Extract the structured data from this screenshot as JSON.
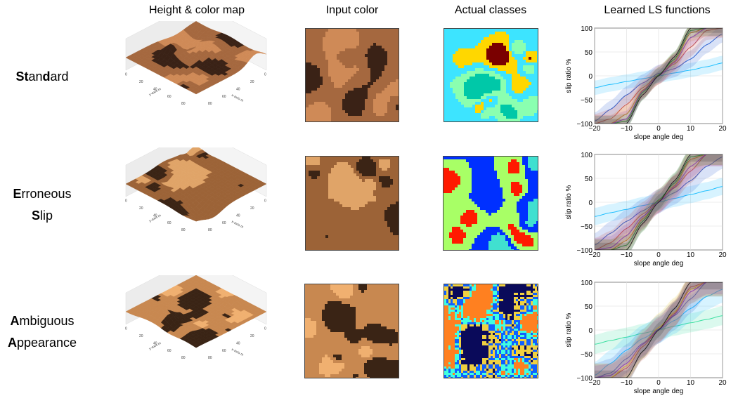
{
  "columns": {
    "height_map": "Height & color map",
    "input_color": "Input color",
    "actual_classes": "Actual classes",
    "ls_functions": "Learned LS functions"
  },
  "rows": [
    {
      "label_lines": [
        [
          {
            "t": "St",
            "b": true
          },
          {
            "t": "an",
            "b": false
          },
          {
            "t": "d",
            "b": true
          },
          {
            "t": "ard",
            "b": false
          }
        ]
      ]
    },
    {
      "label_lines": [
        [
          {
            "t": "E",
            "b": true
          },
          {
            "t": "rroneous",
            "b": false
          }
        ],
        [
          {
            "t": "S",
            "b": true
          },
          {
            "t": "lip",
            "b": false
          }
        ]
      ]
    },
    {
      "label_lines": [
        [
          {
            "t": "A",
            "b": true
          },
          {
            "t": "mbiguous",
            "b": false
          }
        ],
        [
          {
            "t": "A",
            "b": true
          },
          {
            "t": "ppearance",
            "b": false
          }
        ]
      ]
    }
  ],
  "surface_axes": {
    "x_label": "x-axis m",
    "y_label": "y-axis m",
    "x_ticks": [
      "0",
      "20",
      "40",
      "60",
      "80"
    ],
    "y_ticks": [
      "0",
      "20",
      "40",
      "60",
      "80"
    ]
  },
  "palettes": {
    "terrain_row1": [
      "#3a2216",
      "#a5683f",
      "#cf8a57"
    ],
    "terrain_row2": [
      "#3b2415",
      "#9c6337",
      "#e0a468"
    ],
    "terrain_row3": [
      "#3a2415",
      "#c88850",
      "#f0b070"
    ],
    "classes_row1": [
      "#7a0000",
      "#ffd700",
      "#3de4ff",
      "#8affb0",
      "#00c8a8"
    ],
    "classes_row2": [
      "#ff1a00",
      "#a8ff66",
      "#0030ff",
      "#40e0d0"
    ],
    "classes_row3": [
      "#0a0a5a",
      "#f0d040",
      "#1060ff",
      "#40ffe0",
      "#ff8020"
    ]
  },
  "chart_data": [
    {
      "type": "line",
      "title": "",
      "xlabel": "slope angle deg",
      "ylabel": "slip ratio %",
      "xlim": [
        -20,
        20
      ],
      "ylim": [
        -100,
        100
      ],
      "xticks": [
        -20,
        -10,
        0,
        10,
        20
      ],
      "yticks": [
        -100,
        -50,
        0,
        50,
        100
      ],
      "grid": true,
      "x": [
        -20,
        -15,
        -10,
        -5,
        0,
        5,
        10,
        15,
        20
      ],
      "series": [
        {
          "color": "#1fbfff",
          "values": [
            -25,
            -18,
            -12,
            -6,
            0,
            6,
            12,
            19,
            27
          ],
          "band": 15
        },
        {
          "color": "#2a5fd0",
          "values": [
            -95,
            -70,
            -40,
            -15,
            5,
            15,
            35,
            65,
            88
          ],
          "band": 18
        },
        {
          "color": "#c0504d",
          "values": [
            -100,
            -90,
            -60,
            -25,
            2,
            25,
            60,
            95,
            100
          ],
          "band": 20
        },
        {
          "color": "#e08020",
          "values": [
            -100,
            -100,
            -80,
            -30,
            0,
            30,
            90,
            100,
            100
          ],
          "band": 18
        },
        {
          "color": "#2ca02c",
          "values": [
            -100,
            -100,
            -95,
            -35,
            2,
            35,
            95,
            100,
            100
          ],
          "band": 16
        },
        {
          "color": "#8e44ad",
          "values": [
            -100,
            -100,
            -90,
            -32,
            0,
            28,
            80,
            100,
            100
          ],
          "band": 17
        },
        {
          "color": "#222222",
          "values": [
            -100,
            -100,
            -100,
            -40,
            0,
            40,
            100,
            100,
            100
          ],
          "band": 10
        }
      ]
    },
    {
      "type": "line",
      "title": "",
      "xlabel": "slope angle deg",
      "ylabel": "slip ratio %",
      "xlim": [
        -20,
        20
      ],
      "ylim": [
        -100,
        100
      ],
      "xticks": [
        -20,
        -10,
        0,
        10,
        20
      ],
      "yticks": [
        -100,
        -50,
        0,
        50,
        100
      ],
      "grid": true,
      "x": [
        -20,
        -15,
        -10,
        -5,
        0,
        5,
        10,
        15,
        20
      ],
      "series": [
        {
          "color": "#1fbfff",
          "values": [
            -30,
            -22,
            -15,
            -7,
            0,
            8,
            16,
            24,
            33
          ],
          "band": 18
        },
        {
          "color": "#2a5fd0",
          "values": [
            -90,
            -65,
            -40,
            -18,
            2,
            20,
            45,
            75,
            95
          ],
          "band": 25
        },
        {
          "color": "#c0504d",
          "values": [
            -100,
            -85,
            -55,
            -25,
            3,
            30,
            65,
            100,
            100
          ],
          "band": 25
        },
        {
          "color": "#e08020",
          "values": [
            -100,
            -100,
            -80,
            -35,
            0,
            35,
            90,
            100,
            100
          ],
          "band": 22
        },
        {
          "color": "#2ca02c",
          "values": [
            -100,
            -100,
            -90,
            -40,
            5,
            40,
            95,
            100,
            100
          ],
          "band": 22
        },
        {
          "color": "#8e44ad",
          "values": [
            -100,
            -95,
            -70,
            -30,
            0,
            32,
            75,
            100,
            100
          ],
          "band": 24
        },
        {
          "color": "#222222",
          "values": [
            -100,
            -100,
            -100,
            -45,
            0,
            45,
            100,
            100,
            100
          ],
          "band": 15
        }
      ]
    },
    {
      "type": "line",
      "title": "",
      "xlabel": "slope angle deg",
      "ylabel": "slip ratio %",
      "xlim": [
        -20,
        20
      ],
      "ylim": [
        -100,
        100
      ],
      "xticks": [
        -20,
        -10,
        0,
        10,
        20
      ],
      "yticks": [
        -100,
        -50,
        0,
        50,
        100
      ],
      "grid": true,
      "x": [
        -20,
        -15,
        -10,
        -5,
        0,
        5,
        10,
        15,
        20
      ],
      "series": [
        {
          "color": "#3adfa0",
          "values": [
            -30,
            -22,
            -15,
            -7,
            0,
            8,
            15,
            22,
            30
          ],
          "band": 20
        },
        {
          "color": "#1fbfff",
          "values": [
            -95,
            -70,
            -42,
            -18,
            0,
            20,
            45,
            70,
            85
          ],
          "band": 28
        },
        {
          "color": "#2a5fd0",
          "values": [
            -100,
            -90,
            -60,
            -28,
            2,
            30,
            65,
            100,
            100
          ],
          "band": 30
        },
        {
          "color": "#c0504d",
          "values": [
            -100,
            -100,
            -80,
            -35,
            0,
            35,
            90,
            100,
            100
          ],
          "band": 28
        },
        {
          "color": "#e0c020",
          "values": [
            -100,
            -100,
            -75,
            -30,
            5,
            38,
            85,
            100,
            100
          ],
          "band": 30
        },
        {
          "color": "#8e44ad",
          "values": [
            -100,
            -95,
            -70,
            -30,
            0,
            32,
            80,
            100,
            100
          ],
          "band": 25
        },
        {
          "color": "#222222",
          "values": [
            -100,
            -100,
            -100,
            -45,
            0,
            45,
            100,
            100,
            100
          ],
          "band": 15
        }
      ]
    }
  ]
}
